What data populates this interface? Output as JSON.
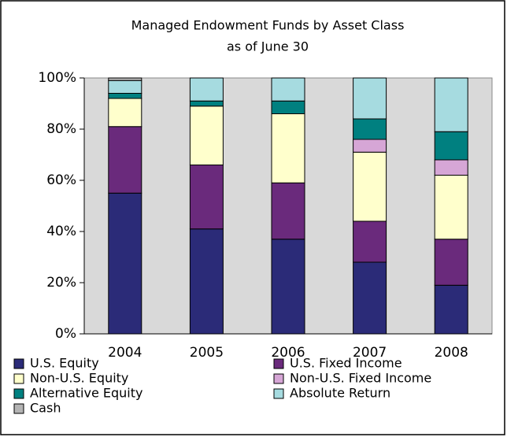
{
  "chart_data": {
    "type": "stacked-bar",
    "title": "Managed Endowment Funds by Asset Class",
    "subtitle": "as of June 30",
    "categories": [
      "2004",
      "2005",
      "2006",
      "2007",
      "2008"
    ],
    "series": [
      {
        "name": "U.S. Equity",
        "color": "#2b2b78",
        "values": [
          55,
          41,
          37,
          28,
          19
        ]
      },
      {
        "name": "U.S. Fixed Income",
        "color": "#6a2a7c",
        "values": [
          26,
          25,
          22,
          16,
          18
        ]
      },
      {
        "name": "Non-U.S. Equity",
        "color": "#ffffcc",
        "values": [
          11,
          23,
          27,
          27,
          25
        ]
      },
      {
        "name": "Non-U.S. Fixed Income",
        "color": "#d6a6d6",
        "values": [
          0,
          0,
          0,
          5,
          6
        ]
      },
      {
        "name": "Alternative Equity",
        "color": "#008080",
        "values": [
          2,
          2,
          5,
          8,
          11
        ]
      },
      {
        "name": "Absolute Return",
        "color": "#a6dbe0",
        "values": [
          5,
          9,
          9,
          16,
          21
        ]
      },
      {
        "name": "Cash",
        "color": "#b4b4b4",
        "values": [
          1,
          0,
          0,
          0,
          0
        ]
      }
    ],
    "ylim": [
      0,
      100
    ],
    "yticks": [
      {
        "value": 0,
        "label": "0%"
      },
      {
        "value": 20,
        "label": "20%"
      },
      {
        "value": 40,
        "label": "40%"
      },
      {
        "value": 60,
        "label": "60%"
      },
      {
        "value": 80,
        "label": "80%"
      },
      {
        "value": 100,
        "label": "100%"
      }
    ]
  }
}
